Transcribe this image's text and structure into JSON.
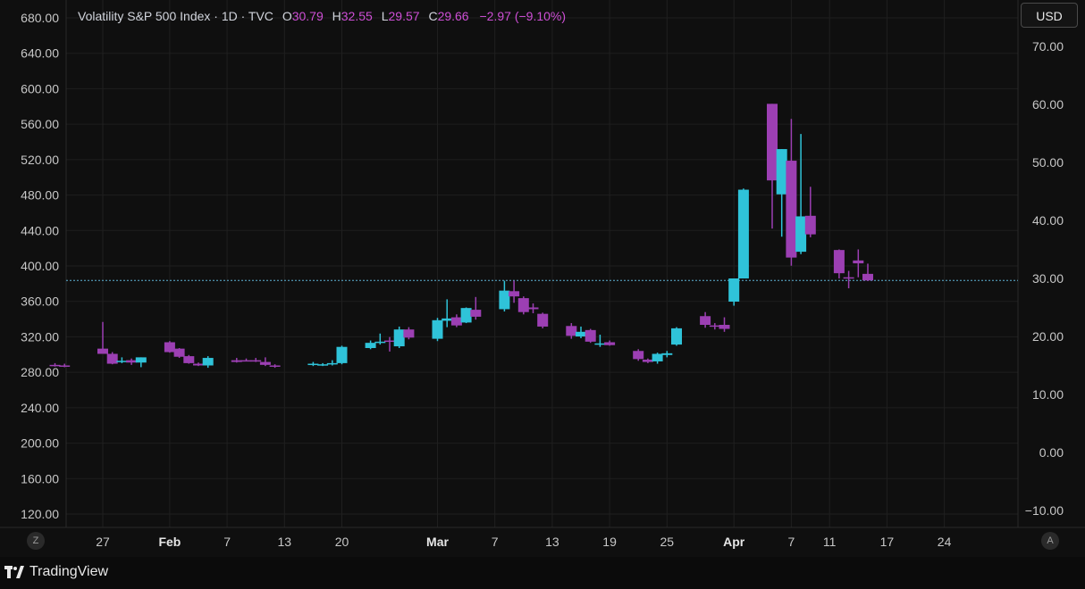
{
  "legend": {
    "title": "Volatility S&P 500 Index · 1D · TVC",
    "open_label": "O",
    "open": "30.79",
    "high_label": "H",
    "high": "32.55",
    "low_label": "L",
    "low": "29.57",
    "close_label": "C",
    "close": "29.66",
    "change": "−2.97 (−9.10%)"
  },
  "currency_button": "USD",
  "axis_left_button": "Z",
  "axis_right_button": "A",
  "brand": {
    "name": "TradingView",
    "icon": "tradingview-logo-icon"
  },
  "colors": {
    "background": "#0f0f0f",
    "up": "#2fc3d9",
    "down": "#9c3fb3",
    "last_price_line": "#5fb3d6",
    "grid": "#1f1f1f",
    "axis_text": "#c7c7c7",
    "legend_value": "#ce4fd6"
  },
  "chart_data": {
    "type": "candlestick",
    "title": "Volatility S&P 500 Index · 1D · TVC",
    "x_tick_labels": [
      "27",
      "Feb",
      "7",
      "13",
      "20",
      "Mar",
      "7",
      "13",
      "19",
      "25",
      "Apr",
      "7",
      "11",
      "17",
      "24"
    ],
    "left_axis": {
      "ticks": [
        "680.00",
        "640.00",
        "600.00",
        "560.00",
        "520.00",
        "480.00",
        "440.00",
        "400.00",
        "360.00",
        "320.00",
        "280.00",
        "240.00",
        "200.00",
        "160.00",
        "120.00"
      ],
      "range": [
        120,
        680
      ]
    },
    "right_axis": {
      "unit": "USD",
      "ticks": [
        "70.00",
        "60.00",
        "50.00",
        "40.00",
        "30.00",
        "20.00",
        "10.00",
        "0.00",
        "−10.00"
      ],
      "range": [
        -10,
        70
      ]
    },
    "last_price": 29.66,
    "grid": true,
    "candles": [
      {
        "date": "2025-01-22",
        "open": 15.1,
        "high": 15.4,
        "low": 14.8,
        "close": 15.0
      },
      {
        "date": "2025-01-23",
        "open": 15.0,
        "high": 15.3,
        "low": 14.7,
        "close": 14.9
      },
      {
        "date": "2025-01-27",
        "open": 17.9,
        "high": 22.5,
        "low": 17.0,
        "close": 17.0
      },
      {
        "date": "2025-01-28",
        "open": 17.0,
        "high": 17.3,
        "low": 15.2,
        "close": 15.3
      },
      {
        "date": "2025-01-29",
        "open": 15.7,
        "high": 16.4,
        "low": 15.4,
        "close": 15.8
      },
      {
        "date": "2025-01-30",
        "open": 15.9,
        "high": 16.2,
        "low": 15.1,
        "close": 15.5
      },
      {
        "date": "2025-01-31",
        "open": 15.5,
        "high": 16.4,
        "low": 14.7,
        "close": 16.4
      },
      {
        "date": "2025-02-03",
        "open": 19.0,
        "high": 19.2,
        "low": 17.2,
        "close": 17.3
      },
      {
        "date": "2025-02-04",
        "open": 17.9,
        "high": 18.0,
        "low": 16.3,
        "close": 16.5
      },
      {
        "date": "2025-02-05",
        "open": 16.6,
        "high": 16.8,
        "low": 15.3,
        "close": 15.4
      },
      {
        "date": "2025-02-06",
        "open": 15.3,
        "high": 15.5,
        "low": 14.9,
        "close": 15.0
      },
      {
        "date": "2025-02-07",
        "open": 15.0,
        "high": 16.6,
        "low": 14.6,
        "close": 16.3
      },
      {
        "date": "2025-02-10",
        "open": 15.9,
        "high": 16.3,
        "low": 15.5,
        "close": 15.6
      },
      {
        "date": "2025-02-11",
        "open": 15.9,
        "high": 16.2,
        "low": 15.7,
        "close": 15.8
      },
      {
        "date": "2025-02-12",
        "open": 15.9,
        "high": 16.3,
        "low": 15.6,
        "close": 15.8
      },
      {
        "date": "2025-02-13",
        "open": 15.6,
        "high": 16.4,
        "low": 14.9,
        "close": 15.1
      },
      {
        "date": "2025-02-14",
        "open": 15.0,
        "high": 15.2,
        "low": 14.6,
        "close": 14.8
      },
      {
        "date": "2025-02-18",
        "open": 15.2,
        "high": 15.6,
        "low": 14.9,
        "close": 15.3
      },
      {
        "date": "2025-02-19",
        "open": 15.1,
        "high": 15.4,
        "low": 14.9,
        "close": 15.2
      },
      {
        "date": "2025-02-20",
        "open": 15.2,
        "high": 15.9,
        "low": 15.0,
        "close": 15.4
      },
      {
        "date": "2025-02-21",
        "open": 15.4,
        "high": 18.4,
        "low": 15.2,
        "close": 18.2
      },
      {
        "date": "2025-02-24",
        "open": 18.0,
        "high": 19.3,
        "low": 17.8,
        "close": 18.9
      },
      {
        "date": "2025-02-25",
        "open": 19.0,
        "high": 20.5,
        "low": 18.6,
        "close": 19.1
      },
      {
        "date": "2025-02-26",
        "open": 19.3,
        "high": 19.9,
        "low": 17.4,
        "close": 19.1
      },
      {
        "date": "2025-02-27",
        "open": 18.3,
        "high": 21.7,
        "low": 18.0,
        "close": 21.2
      },
      {
        "date": "2025-02-28",
        "open": 21.2,
        "high": 21.6,
        "low": 19.5,
        "close": 19.8
      },
      {
        "date": "2025-03-03",
        "open": 19.6,
        "high": 23.2,
        "low": 19.2,
        "close": 22.8
      },
      {
        "date": "2025-03-04",
        "open": 22.7,
        "high": 26.4,
        "low": 21.6,
        "close": 23.1
      },
      {
        "date": "2025-03-05",
        "open": 23.3,
        "high": 23.8,
        "low": 21.6,
        "close": 21.9
      },
      {
        "date": "2025-03-06",
        "open": 22.4,
        "high": 25.0,
        "low": 22.3,
        "close": 24.9
      },
      {
        "date": "2025-03-07",
        "open": 24.6,
        "high": 26.8,
        "low": 22.9,
        "close": 23.4
      },
      {
        "date": "2025-03-10",
        "open": 24.7,
        "high": 29.6,
        "low": 24.3,
        "close": 27.9
      },
      {
        "date": "2025-03-11",
        "open": 27.8,
        "high": 29.6,
        "low": 25.8,
        "close": 26.9
      },
      {
        "date": "2025-03-12",
        "open": 26.6,
        "high": 26.9,
        "low": 23.8,
        "close": 24.2
      },
      {
        "date": "2025-03-13",
        "open": 25.0,
        "high": 25.7,
        "low": 24.0,
        "close": 24.7
      },
      {
        "date": "2025-03-14",
        "open": 23.9,
        "high": 24.1,
        "low": 21.4,
        "close": 21.7
      },
      {
        "date": "2025-03-17",
        "open": 21.8,
        "high": 22.3,
        "low": 19.6,
        "close": 20.1
      },
      {
        "date": "2025-03-18",
        "open": 20.0,
        "high": 21.7,
        "low": 19.7,
        "close": 20.8
      },
      {
        "date": "2025-03-19",
        "open": 21.1,
        "high": 21.3,
        "low": 18.9,
        "close": 19.1
      },
      {
        "date": "2025-03-20",
        "open": 18.7,
        "high": 20.3,
        "low": 18.2,
        "close": 18.8
      },
      {
        "date": "2025-03-21",
        "open": 19.0,
        "high": 19.3,
        "low": 18.4,
        "close": 18.5
      },
      {
        "date": "2025-03-24",
        "open": 17.5,
        "high": 17.8,
        "low": 15.8,
        "close": 16.1
      },
      {
        "date": "2025-03-25",
        "open": 16.0,
        "high": 16.2,
        "low": 15.4,
        "close": 15.6
      },
      {
        "date": "2025-03-26",
        "open": 15.7,
        "high": 17.2,
        "low": 15.3,
        "close": 17.0
      },
      {
        "date": "2025-03-27",
        "open": 16.8,
        "high": 17.5,
        "low": 16.4,
        "close": 17.1
      },
      {
        "date": "2025-03-28",
        "open": 18.6,
        "high": 21.6,
        "low": 18.4,
        "close": 21.4
      },
      {
        "date": "2025-03-31",
        "open": 23.5,
        "high": 24.2,
        "low": 21.5,
        "close": 22.0
      },
      {
        "date": "2025-04-01",
        "open": 21.9,
        "high": 22.3,
        "low": 21.2,
        "close": 21.8
      },
      {
        "date": "2025-04-02",
        "open": 22.0,
        "high": 23.3,
        "low": 20.8,
        "close": 21.3
      },
      {
        "date": "2025-04-03",
        "open": 26.0,
        "high": 30.0,
        "low": 25.3,
        "close": 30.0
      },
      {
        "date": "2025-04-04",
        "open": 30.0,
        "high": 45.5,
        "low": 30.0,
        "close": 45.3
      },
      {
        "date": "2025-04-07",
        "open": 60.1,
        "high": 60.1,
        "low": 38.6,
        "close": 46.9
      },
      {
        "date": "2025-04-08",
        "open": 44.5,
        "high": 52.3,
        "low": 37.2,
        "close": 52.3
      },
      {
        "date": "2025-04-09",
        "open": 50.3,
        "high": 57.5,
        "low": 32.2,
        "close": 33.6
      },
      {
        "date": "2025-04-10",
        "open": 34.6,
        "high": 54.9,
        "low": 34.2,
        "close": 40.7
      },
      {
        "date": "2025-04-11",
        "open": 40.8,
        "high": 45.8,
        "low": 37.1,
        "close": 37.6
      },
      {
        "date": "2025-04-14",
        "open": 34.9,
        "high": 35.0,
        "low": 30.0,
        "close": 30.9
      },
      {
        "date": "2025-04-15",
        "open": 30.2,
        "high": 31.3,
        "low": 28.3,
        "close": 30.1
      },
      {
        "date": "2025-04-16",
        "open": 33.1,
        "high": 35.0,
        "low": 30.2,
        "close": 32.6
      },
      {
        "date": "2025-04-17",
        "open": 30.79,
        "high": 32.55,
        "low": 29.57,
        "close": 29.66
      }
    ]
  }
}
